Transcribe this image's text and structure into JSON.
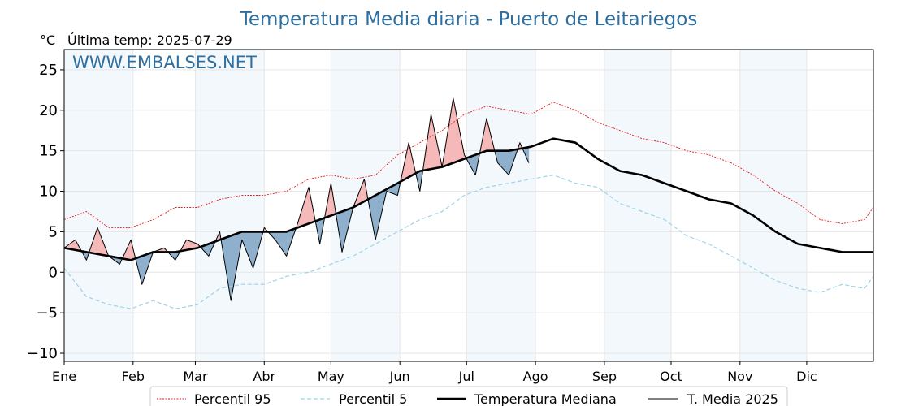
{
  "chart_data": {
    "type": "line",
    "title": "Temperatura Media diaria - Puerto de Leitariegos",
    "unit": "°C",
    "subtitle": "Última temp: 2025-07-29",
    "watermark": "WWW.EMBALSES.NET",
    "months": [
      "Ene",
      "Feb",
      "Mar",
      "Abr",
      "May",
      "Jun",
      "Jul",
      "Ago",
      "Sep",
      "Oct",
      "Nov",
      "Dic"
    ],
    "yticks": [
      "25",
      "20",
      "15",
      "10",
      "5",
      "0",
      "−5",
      "−10"
    ],
    "ylim": [
      -11,
      27.5
    ],
    "xlim_days": [
      1,
      365
    ],
    "grid": true,
    "legend_position": "bottom",
    "x_unit": "day of year (sampled every ~10 days)",
    "series": [
      {
        "name": "Percentil 95",
        "style": "dotted",
        "color": "#e41a1c",
        "x": [
          1,
          11,
          21,
          31,
          41,
          51,
          61,
          71,
          81,
          91,
          101,
          111,
          121,
          131,
          141,
          151,
          161,
          171,
          181,
          191,
          201,
          211,
          221,
          231,
          241,
          251,
          261,
          271,
          281,
          291,
          301,
          311,
          321,
          331,
          341,
          351,
          361,
          365
        ],
        "values": [
          6.5,
          7.5,
          5.5,
          5.5,
          6.5,
          8.0,
          8.0,
          9.0,
          9.5,
          9.5,
          10.0,
          11.5,
          12.0,
          11.5,
          12.0,
          14.5,
          16.0,
          17.5,
          19.5,
          20.5,
          20.0,
          19.5,
          21.0,
          20.0,
          18.5,
          17.5,
          16.5,
          16.0,
          15.0,
          14.5,
          13.5,
          12.0,
          10.0,
          8.5,
          6.5,
          6.0,
          6.5,
          8.0
        ]
      },
      {
        "name": "Percentil 5",
        "style": "dashed",
        "color": "#9fd3e6",
        "x": [
          1,
          11,
          21,
          31,
          41,
          51,
          61,
          71,
          81,
          91,
          101,
          111,
          121,
          131,
          141,
          151,
          161,
          171,
          181,
          191,
          201,
          211,
          221,
          231,
          241,
          251,
          261,
          271,
          281,
          291,
          301,
          311,
          321,
          331,
          341,
          351,
          361,
          365
        ],
        "values": [
          0.5,
          -3.0,
          -4.0,
          -4.5,
          -3.5,
          -4.5,
          -4.0,
          -2.0,
          -1.5,
          -1.5,
          -0.5,
          0.0,
          1.0,
          2.0,
          3.5,
          5.0,
          6.5,
          7.5,
          9.5,
          10.5,
          11.0,
          11.5,
          12.0,
          11.0,
          10.5,
          8.5,
          7.5,
          6.5,
          4.5,
          3.5,
          2.0,
          0.5,
          -1.0,
          -2.0,
          -2.5,
          -1.5,
          -2.0,
          -0.5
        ]
      },
      {
        "name": "Temperatura Mediana",
        "style": "solid-thick",
        "color": "#000000",
        "x": [
          1,
          11,
          21,
          31,
          41,
          51,
          61,
          71,
          81,
          91,
          101,
          111,
          121,
          131,
          141,
          151,
          161,
          171,
          181,
          191,
          201,
          211,
          221,
          231,
          241,
          251,
          261,
          271,
          281,
          291,
          301,
          311,
          321,
          331,
          341,
          351,
          361,
          365
        ],
        "values": [
          3.0,
          2.5,
          2.0,
          1.5,
          2.5,
          2.5,
          3.0,
          4.0,
          5.0,
          5.0,
          5.0,
          6.0,
          7.0,
          8.0,
          9.5,
          11.0,
          12.5,
          13.0,
          14.0,
          15.0,
          15.0,
          15.5,
          16.5,
          16.0,
          14.0,
          12.5,
          12.0,
          11.0,
          10.0,
          9.0,
          8.5,
          7.0,
          5.0,
          3.5,
          3.0,
          2.5,
          2.5,
          2.5
        ]
      },
      {
        "name": "T. Media 2025",
        "style": "solid-thin",
        "color": "#000000",
        "x": [
          1,
          6,
          11,
          16,
          21,
          26,
          31,
          36,
          41,
          46,
          51,
          56,
          61,
          66,
          71,
          76,
          81,
          86,
          91,
          96,
          101,
          106,
          111,
          116,
          121,
          126,
          131,
          136,
          141,
          146,
          151,
          156,
          161,
          166,
          171,
          176,
          181,
          186,
          191,
          196,
          201,
          206,
          210
        ],
        "values": [
          3.0,
          4.0,
          1.5,
          5.5,
          2.0,
          1.0,
          4.0,
          -1.5,
          2.5,
          3.0,
          1.5,
          4.0,
          3.5,
          2.0,
          5.0,
          -3.5,
          4.0,
          0.5,
          5.5,
          4.0,
          2.0,
          6.0,
          10.5,
          3.5,
          11.0,
          2.5,
          8.0,
          11.5,
          4.0,
          10.0,
          9.5,
          16.0,
          10.0,
          19.5,
          13.0,
          21.5,
          14.5,
          12.0,
          19.0,
          13.5,
          12.0,
          16.0,
          13.5
        ]
      }
    ]
  }
}
